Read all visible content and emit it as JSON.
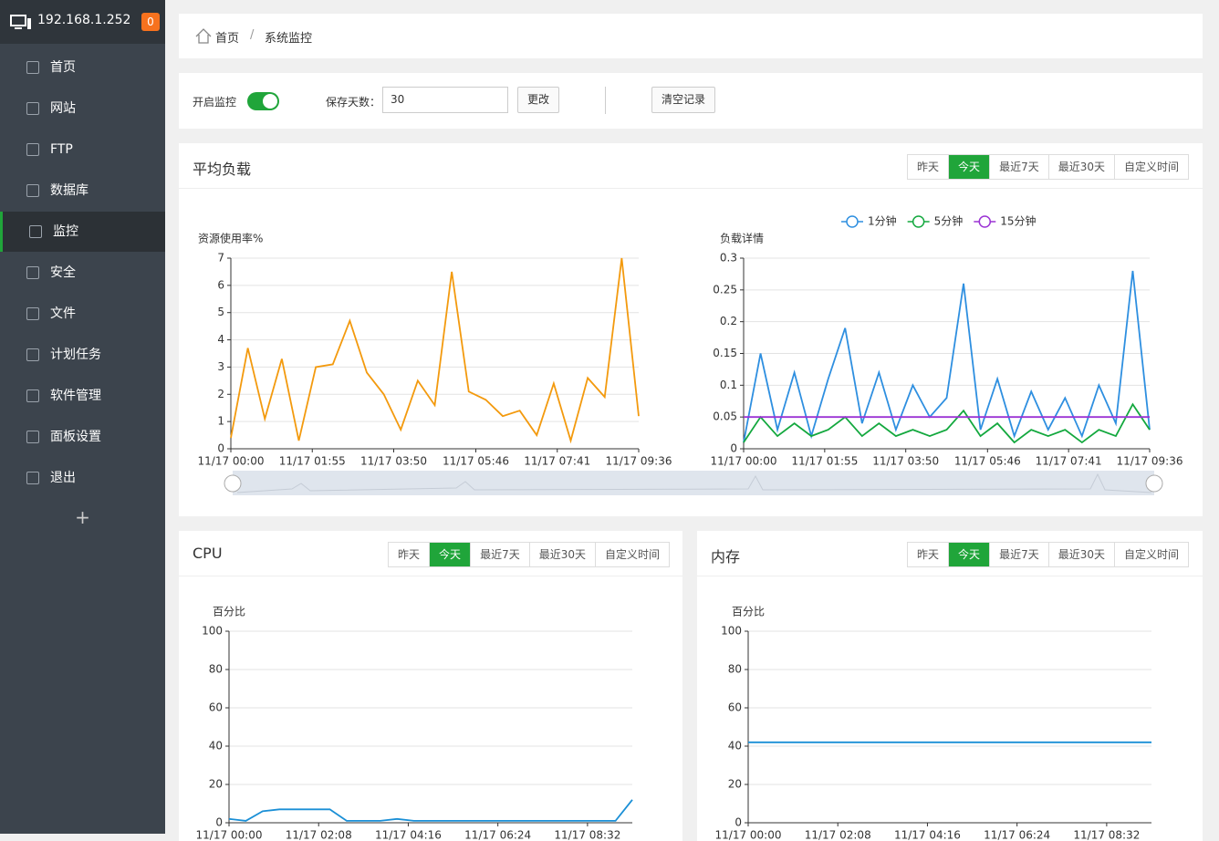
{
  "sidebar": {
    "host": "192.168.1.252",
    "badge": "0",
    "active": 4,
    "menu": [
      "首页",
      "网站",
      "FTP",
      "数据库",
      "监控",
      "安全",
      "文件",
      "计划任务",
      "软件管理",
      "面板设置",
      "退出"
    ],
    "add": "+"
  },
  "breadcrumb": {
    "home": "首页",
    "separator": "/",
    "current": "系统监控"
  },
  "toolbar": {
    "monitor_label": "开启监控",
    "days_label": "保存天数：",
    "days_value": "30",
    "change_button": "更改",
    "clear_button": "清空记录"
  },
  "range_buttons": [
    "昨天",
    "今天",
    "最近7天",
    "最近30天",
    "自定义时间"
  ],
  "active_range": 1,
  "panels": {
    "load": "平均负载",
    "cpu": "CPU",
    "memory": "内存"
  },
  "chart_data": [
    {
      "type": "line",
      "ylabel": "资源使用率%",
      "color": "#f39a0e",
      "x": [
        0,
        24,
        48,
        72,
        96,
        120,
        144,
        168,
        192,
        216,
        240,
        264,
        288,
        312,
        336,
        360,
        384,
        408,
        432,
        456,
        480,
        504,
        528,
        552,
        576
      ],
      "values": [
        0.4,
        3.7,
        1.1,
        3.3,
        0.3,
        3.0,
        3.1,
        4.7,
        2.8,
        2.0,
        0.7,
        2.5,
        1.6,
        6.5,
        2.1,
        1.8,
        1.2,
        1.4,
        0.5,
        2.4,
        0.3,
        2.6,
        1.9,
        7.0,
        1.2
      ],
      "xlim": [
        0,
        576
      ],
      "xticks": [
        {
          "value": 0,
          "label": "11/17 00:00"
        },
        {
          "value": 115,
          "label": "11/17 01:55"
        },
        {
          "value": 230,
          "label": "11/17 03:50"
        },
        {
          "value": 346,
          "label": "11/17 05:46"
        },
        {
          "value": 461,
          "label": "11/17 07:41"
        },
        {
          "value": 576,
          "label": "11/17 09:36"
        }
      ],
      "ylim": [
        0,
        7
      ],
      "yticks": [
        0,
        1,
        2,
        3,
        4,
        5,
        6,
        7
      ],
      "grid": true
    },
    {
      "type": "line",
      "ylabel": "负载详情",
      "legend": "top",
      "x": [
        0,
        24,
        48,
        72,
        96,
        120,
        144,
        168,
        192,
        216,
        240,
        264,
        288,
        312,
        336,
        360,
        384,
        408,
        432,
        456,
        480,
        504,
        528,
        552,
        576
      ],
      "series": [
        {
          "name": "1分钟",
          "color": "#2e8fe0",
          "values": [
            0.01,
            0.15,
            0.03,
            0.12,
            0.02,
            0.11,
            0.19,
            0.04,
            0.12,
            0.03,
            0.1,
            0.05,
            0.08,
            0.26,
            0.03,
            0.11,
            0.02,
            0.09,
            0.03,
            0.08,
            0.02,
            0.1,
            0.04,
            0.28,
            0.03
          ]
        },
        {
          "name": "5分钟",
          "color": "#13a83e",
          "values": [
            0.01,
            0.05,
            0.02,
            0.04,
            0.02,
            0.03,
            0.05,
            0.02,
            0.04,
            0.02,
            0.03,
            0.02,
            0.03,
            0.06,
            0.02,
            0.04,
            0.01,
            0.03,
            0.02,
            0.03,
            0.01,
            0.03,
            0.02,
            0.07,
            0.03
          ]
        },
        {
          "name": "15分钟",
          "color": "#9b33d4",
          "values": [
            0.05,
            0.05,
            0.05,
            0.05,
            0.05,
            0.05,
            0.05,
            0.05,
            0.05,
            0.05,
            0.05,
            0.05,
            0.05,
            0.05,
            0.05,
            0.05,
            0.05,
            0.05,
            0.05,
            0.05,
            0.05,
            0.05,
            0.05,
            0.05,
            0.05
          ]
        }
      ],
      "xlim": [
        0,
        576
      ],
      "xticks": [
        {
          "value": 0,
          "label": "11/17 00:00"
        },
        {
          "value": 115,
          "label": "11/17 01:55"
        },
        {
          "value": 230,
          "label": "11/17 03:50"
        },
        {
          "value": 346,
          "label": "11/17 05:46"
        },
        {
          "value": 461,
          "label": "11/17 07:41"
        },
        {
          "value": 576,
          "label": "11/17 09:36"
        }
      ],
      "ylim": [
        0,
        0.3
      ],
      "yticks": [
        0,
        0.05,
        0.1,
        0.15,
        0.2,
        0.25,
        0.3
      ],
      "grid": true
    },
    {
      "type": "line",
      "ylabel": "百分比",
      "color": "#1a8fd6",
      "x": [
        0,
        24,
        48,
        72,
        96,
        120,
        144,
        168,
        192,
        216,
        240,
        264,
        288,
        312,
        336,
        360,
        384,
        408,
        432,
        456,
        480,
        504,
        528,
        552,
        576
      ],
      "values": [
        2,
        1,
        6,
        7,
        7,
        7,
        7,
        1,
        1,
        1,
        2,
        1,
        1,
        1,
        1,
        1,
        1,
        1,
        1,
        1,
        1,
        1,
        1,
        1,
        12
      ],
      "xlim": [
        0,
        576
      ],
      "xticks": [
        {
          "value": 0,
          "label": "11/17 00:00"
        },
        {
          "value": 128,
          "label": "11/17 02:08"
        },
        {
          "value": 256,
          "label": "11/17 04:16"
        },
        {
          "value": 384,
          "label": "11/17 06:24"
        },
        {
          "value": 512,
          "label": "11/17 08:32"
        }
      ],
      "ylim": [
        0,
        100
      ],
      "yticks": [
        0,
        20,
        40,
        60,
        80,
        100
      ],
      "grid": true
    },
    {
      "type": "line",
      "ylabel": "百分比",
      "color": "#1a8fd6",
      "x": [
        0,
        576
      ],
      "values": [
        42,
        42
      ],
      "xlim": [
        0,
        576
      ],
      "xticks": [
        {
          "value": 0,
          "label": "11/17 00:00"
        },
        {
          "value": 128,
          "label": "11/17 02:08"
        },
        {
          "value": 256,
          "label": "11/17 04:16"
        },
        {
          "value": 384,
          "label": "11/17 06:24"
        },
        {
          "value": 512,
          "label": "11/17 08:32"
        }
      ],
      "ylim": [
        0,
        100
      ],
      "yticks": [
        0,
        20,
        40,
        60,
        80,
        100
      ],
      "grid": true
    }
  ]
}
